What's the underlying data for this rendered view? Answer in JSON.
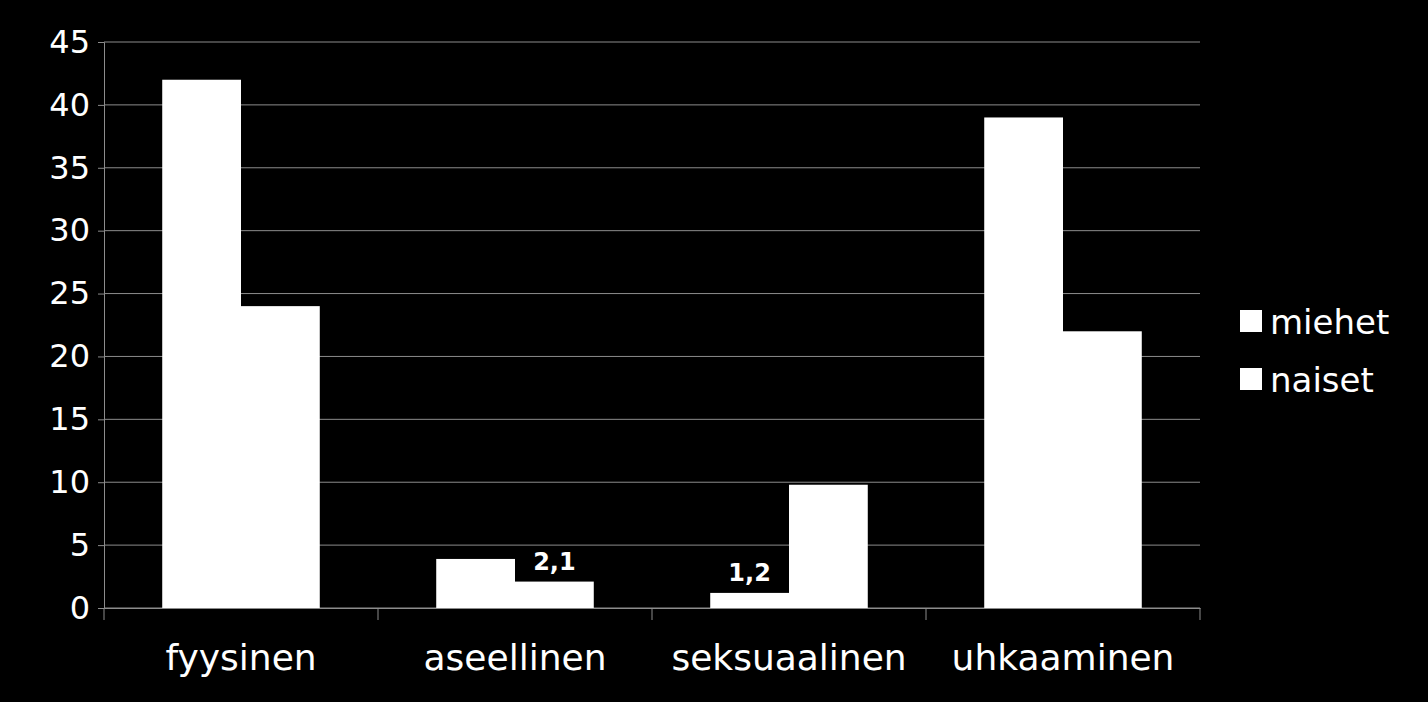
{
  "chart_data": {
    "type": "bar",
    "categories": [
      "fyysinen",
      "aseellinen",
      "seksuaalinen",
      "uhkaaminen"
    ],
    "series": [
      {
        "name": "miehet",
        "color": "#ffffff",
        "values": [
          42,
          3.9,
          1.2,
          39
        ],
        "value_labels": [
          null,
          null,
          "1,2",
          null
        ]
      },
      {
        "name": "naiset",
        "color": "#ffffff",
        "values": [
          24,
          2.1,
          9.8,
          22
        ],
        "value_labels": [
          null,
          "2,1",
          null,
          null
        ]
      }
    ],
    "ylim": [
      0,
      45
    ],
    "yticks": [
      0,
      5,
      10,
      15,
      20,
      25,
      30,
      35,
      40,
      45
    ],
    "grid": true,
    "legend": "right",
    "data_labels": true
  }
}
